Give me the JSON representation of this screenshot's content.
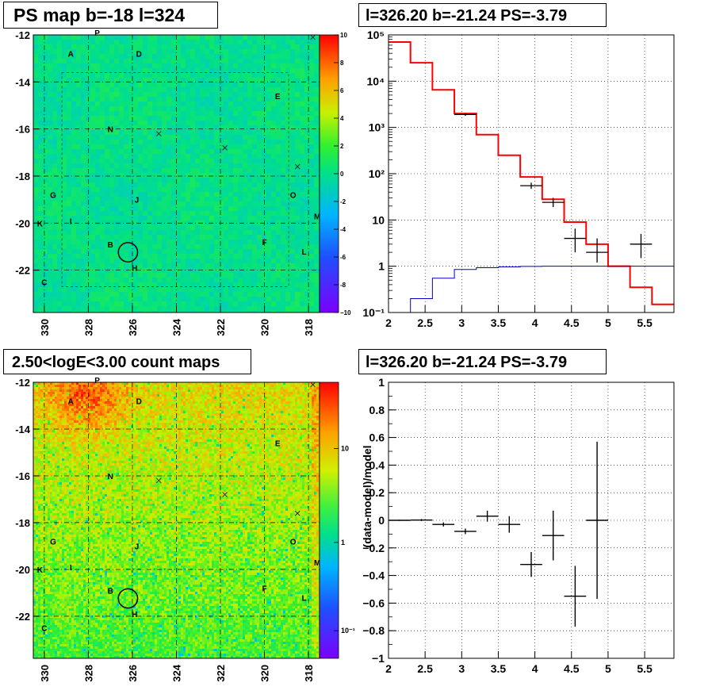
{
  "titles": {
    "ps_map": "PS map b=-18 l=324",
    "spectrum_top": "l=326.20 b=-21.24 PS=-3.79",
    "count_map": "2.50<logE<3.00 count maps",
    "spectrum_bottom": "l=326.20 b=-21.24 PS=-3.79"
  },
  "colors": {
    "data": "#000000",
    "model": "#ff0000",
    "background_model": "#0000cc",
    "grid": "#000000"
  },
  "source_labels": [
    {
      "name": "P",
      "l": 327.6,
      "b": -11.9
    },
    {
      "name": "A",
      "l": 328.8,
      "b": -12.8
    },
    {
      "name": "D",
      "l": 325.7,
      "b": -12.8
    },
    {
      "name": "E",
      "l": 319.4,
      "b": -14.6
    },
    {
      "name": "N",
      "l": 327.0,
      "b": -16.0
    },
    {
      "name": "G",
      "l": 329.6,
      "b": -18.8
    },
    {
      "name": "J",
      "l": 325.8,
      "b": -19.0
    },
    {
      "name": "O",
      "l": 318.7,
      "b": -18.8
    },
    {
      "name": "K",
      "l": 330.2,
      "b": -20.0
    },
    {
      "name": "I",
      "l": 328.8,
      "b": -19.9
    },
    {
      "name": "M",
      "l": 317.6,
      "b": -19.7
    },
    {
      "name": "F",
      "l": 320.0,
      "b": -20.8
    },
    {
      "name": "B",
      "l": 327.0,
      "b": -20.9
    },
    {
      "name": "L",
      "l": 318.2,
      "b": -21.2
    },
    {
      "name": "H",
      "l": 325.9,
      "b": -21.9
    },
    {
      "name": "C",
      "l": 330.0,
      "b": -22.5
    }
  ],
  "source_crosses": [
    {
      "l": 317.8,
      "b": -12.1
    },
    {
      "l": 324.8,
      "b": -16.2
    },
    {
      "l": 321.8,
      "b": -16.8
    },
    {
      "l": 318.5,
      "b": -17.6
    }
  ],
  "circle": {
    "l": 326.2,
    "b": -21.24,
    "r": 0.38
  },
  "chart_data": [
    {
      "type": "heatmap",
      "title": "PS map b=-18 l=324",
      "xlabel": "",
      "ylabel": "",
      "xlim": [
        330.5,
        317.5
      ],
      "ylim": [
        -23.8,
        -12
      ],
      "x_ticks": [
        "330",
        "328",
        "326",
        "324",
        "322",
        "320",
        "318"
      ],
      "y_ticks": [
        "-12",
        "-14",
        "-16",
        "-18",
        "-20",
        "-22"
      ],
      "colorbar": {
        "range": [
          -10,
          10
        ],
        "ticks": [
          "10",
          "8",
          "6",
          "4",
          "2",
          "0",
          "-2",
          "-4",
          "-6",
          "-8",
          "−10"
        ]
      },
      "value_level": 0.5,
      "grid": true
    },
    {
      "type": "line",
      "title": "l=326.20 b=-21.24 PS=-3.79",
      "xlabel": "",
      "ylabel": "",
      "xlim": [
        2,
        5.9
      ],
      "ylim": [
        0.1,
        100000
      ],
      "y_scale": "log",
      "x_ticks": [
        "2",
        "2.5",
        "3",
        "3.5",
        "4",
        "4.5",
        "5",
        "5.5"
      ],
      "y_ticks": [
        "10⁻¹",
        "1",
        "10",
        "10²",
        "10³",
        "10⁴",
        "10⁵"
      ],
      "bin_edges": [
        2,
        2.3,
        2.6,
        2.9,
        3.2,
        3.5,
        3.8,
        4.1,
        4.4,
        4.7,
        5.0,
        5.3,
        5.6,
        5.9
      ],
      "series": [
        {
          "name": "",
          "style": "step",
          "color": "#ff0000",
          "values": [
            70000,
            25000,
            6500,
            2000,
            700,
            250,
            85,
            28,
            9,
            3,
            1,
            0.35,
            0.15
          ]
        },
        {
          "name": "",
          "style": "step",
          "color": "#0000cc",
          "values": [
            0.1,
            0.2,
            0.55,
            0.85,
            0.93,
            0.97,
            0.99,
            1,
            1,
            1,
            1,
            1,
            1
          ]
        },
        {
          "name": "",
          "style": "errorbar",
          "color": "#000000",
          "points": [
            {
              "x": 3.05,
              "y": 1900,
              "lo": 1780,
              "hi": 2020
            },
            {
              "x": 3.95,
              "y": 55,
              "lo": 47,
              "hi": 64
            },
            {
              "x": 4.25,
              "y": 24,
              "lo": 19,
              "hi": 30
            },
            {
              "x": 4.55,
              "y": 4,
              "lo": 2,
              "hi": 6.5
            },
            {
              "x": 4.85,
              "y": 2,
              "lo": 1.2,
              "hi": 4
            },
            {
              "x": 5.45,
              "y": 3,
              "lo": 1.5,
              "hi": 5
            }
          ]
        }
      ],
      "grid": true
    },
    {
      "type": "heatmap",
      "title": "2.50<logE<3.00 count maps",
      "xlabel": "",
      "ylabel": "",
      "xlim": [
        330.5,
        317.5
      ],
      "ylim": [
        -23.8,
        -12
      ],
      "x_ticks": [
        "330",
        "328",
        "326",
        "324",
        "322",
        "320",
        "318"
      ],
      "y_ticks": [
        "-12",
        "-14",
        "-16",
        "-18",
        "-20",
        "-22"
      ],
      "colorbar": {
        "scale": "log",
        "ticks": [
          "10",
          "1",
          "10⁻¹"
        ]
      },
      "grid": true
    },
    {
      "type": "scatter",
      "title": "l=326.20 b=-21.24 PS=-3.79",
      "xlabel": "",
      "ylabel": "(data-model)/model",
      "xlim": [
        2,
        5.9
      ],
      "ylim": [
        -1,
        1
      ],
      "x_ticks": [
        "2",
        "2.5",
        "3",
        "3.5",
        "4",
        "4.5",
        "5",
        "5.5"
      ],
      "y_ticks": [
        "1",
        "0.8",
        "0.6",
        "0.4",
        "0.2",
        "0",
        "−0.2",
        "−0.4",
        "−0.6",
        "−0.8",
        "−1"
      ],
      "points": [
        {
          "x": 2.15,
          "y": 0.0,
          "xerr": 0.15,
          "yerr": 0.004
        },
        {
          "x": 2.45,
          "y": 0.002,
          "xerr": 0.15,
          "yerr": 0.007
        },
        {
          "x": 2.75,
          "y": -0.03,
          "xerr": 0.15,
          "yerr": 0.015
        },
        {
          "x": 3.05,
          "y": -0.08,
          "xerr": 0.15,
          "yerr": 0.02
        },
        {
          "x": 3.35,
          "y": 0.03,
          "xerr": 0.15,
          "yerr": 0.04
        },
        {
          "x": 3.65,
          "y": -0.03,
          "xerr": 0.15,
          "yerr": 0.06
        },
        {
          "x": 3.95,
          "y": -0.32,
          "xerr": 0.15,
          "yerr": 0.09
        },
        {
          "x": 4.25,
          "y": -0.11,
          "xerr": 0.15,
          "yerr": 0.18
        },
        {
          "x": 4.55,
          "y": -0.55,
          "xerr": 0.15,
          "yerr": 0.22
        },
        {
          "x": 4.85,
          "y": 0.0,
          "xerr": 0.15,
          "yerr": 0.57
        }
      ],
      "grid": true
    }
  ]
}
